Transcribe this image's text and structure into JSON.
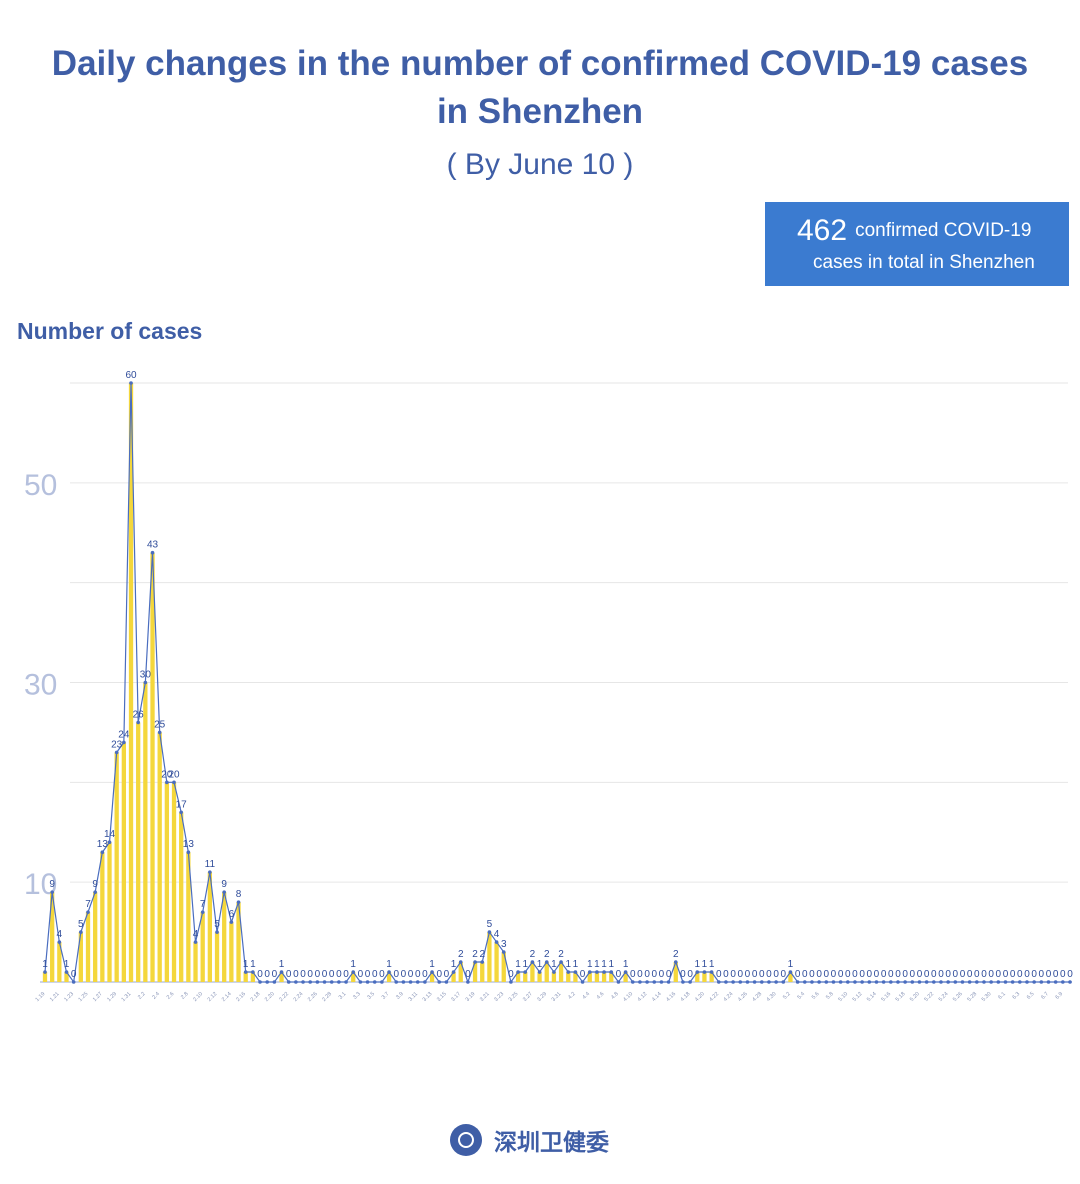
{
  "header": {
    "title": "Daily changes in the number of confirmed COVID-19 cases in Shenzhen",
    "subtitle": "( By June 10 )"
  },
  "total": {
    "number": "462",
    "text_line1": "confirmed COVID-19",
    "text_line2": "cases in total in Shenzhen"
  },
  "footer": {
    "org_name": "深圳卫健委",
    "logo_icon": "health-commission-emblem-icon"
  },
  "colors": {
    "title": "#3f5ea6",
    "line": "#4a6dbf",
    "fill": "#f4d73c",
    "box": "#3b7bd0",
    "tick": "#b5c0dd"
  },
  "chart_data": {
    "type": "area",
    "ylabel": "Number of cases",
    "ylim": [
      0,
      60
    ],
    "yticks": [
      10,
      30,
      50
    ],
    "grid": true,
    "start_date": "1.19",
    "tick_labels": [
      "1.19",
      "1.21",
      "1.23",
      "1.25",
      "1.27",
      "1.29",
      "1.31",
      "2.2",
      "2.4",
      "2.6",
      "2.8",
      "2.10",
      "2.12",
      "2.14",
      "2.16",
      "2.18",
      "2.20",
      "2.22",
      "2.24",
      "2.26",
      "2.28",
      "3.1",
      "3.3",
      "3.5",
      "3.7",
      "3.9",
      "3.11",
      "3.13",
      "3.15",
      "3.17",
      "3.19",
      "3.21",
      "3.23",
      "3.25",
      "3.27",
      "3.29",
      "3.31",
      "4.2",
      "4.4",
      "4.6",
      "4.8",
      "4.10",
      "4.12",
      "4.14",
      "4.16",
      "4.18",
      "4.20",
      "4.22",
      "4.24",
      "4.26",
      "4.28",
      "4.30",
      "5.2",
      "5.4",
      "5.6",
      "5.8",
      "5.10",
      "5.12",
      "5.14",
      "5.16",
      "5.18",
      "5.20",
      "5.22",
      "5.24",
      "5.26",
      "5.28",
      "5.30",
      "6.1",
      "6.3",
      "6.5",
      "6.7",
      "6.9"
    ],
    "values": [
      1,
      9,
      4,
      1,
      0,
      5,
      7,
      9,
      13,
      14,
      23,
      24,
      60,
      26,
      30,
      43,
      25,
      20,
      20,
      17,
      13,
      4,
      7,
      11,
      5,
      9,
      6,
      8,
      1,
      1,
      0,
      0,
      0,
      1,
      0,
      0,
      0,
      0,
      0,
      0,
      0,
      0,
      0,
      1,
      0,
      0,
      0,
      0,
      1,
      0,
      0,
      0,
      0,
      0,
      1,
      0,
      0,
      1,
      2,
      0,
      2,
      2,
      5,
      4,
      3,
      0,
      1,
      1,
      2,
      1,
      2,
      1,
      2,
      1,
      1,
      0,
      1,
      1,
      1,
      1,
      0,
      1,
      0,
      0,
      0,
      0,
      0,
      0,
      2,
      0,
      0,
      1,
      1,
      1,
      0,
      0,
      0,
      0,
      0,
      0,
      0,
      0,
      0,
      0,
      1,
      0,
      0,
      0,
      0,
      0,
      0,
      0,
      0,
      0,
      0,
      0,
      0,
      0,
      0,
      0,
      0,
      0,
      0,
      0,
      0,
      0,
      0,
      0,
      0,
      0,
      0,
      0,
      0,
      0,
      0,
      0,
      0,
      0,
      0,
      0,
      0,
      0,
      0,
      0
    ]
  }
}
